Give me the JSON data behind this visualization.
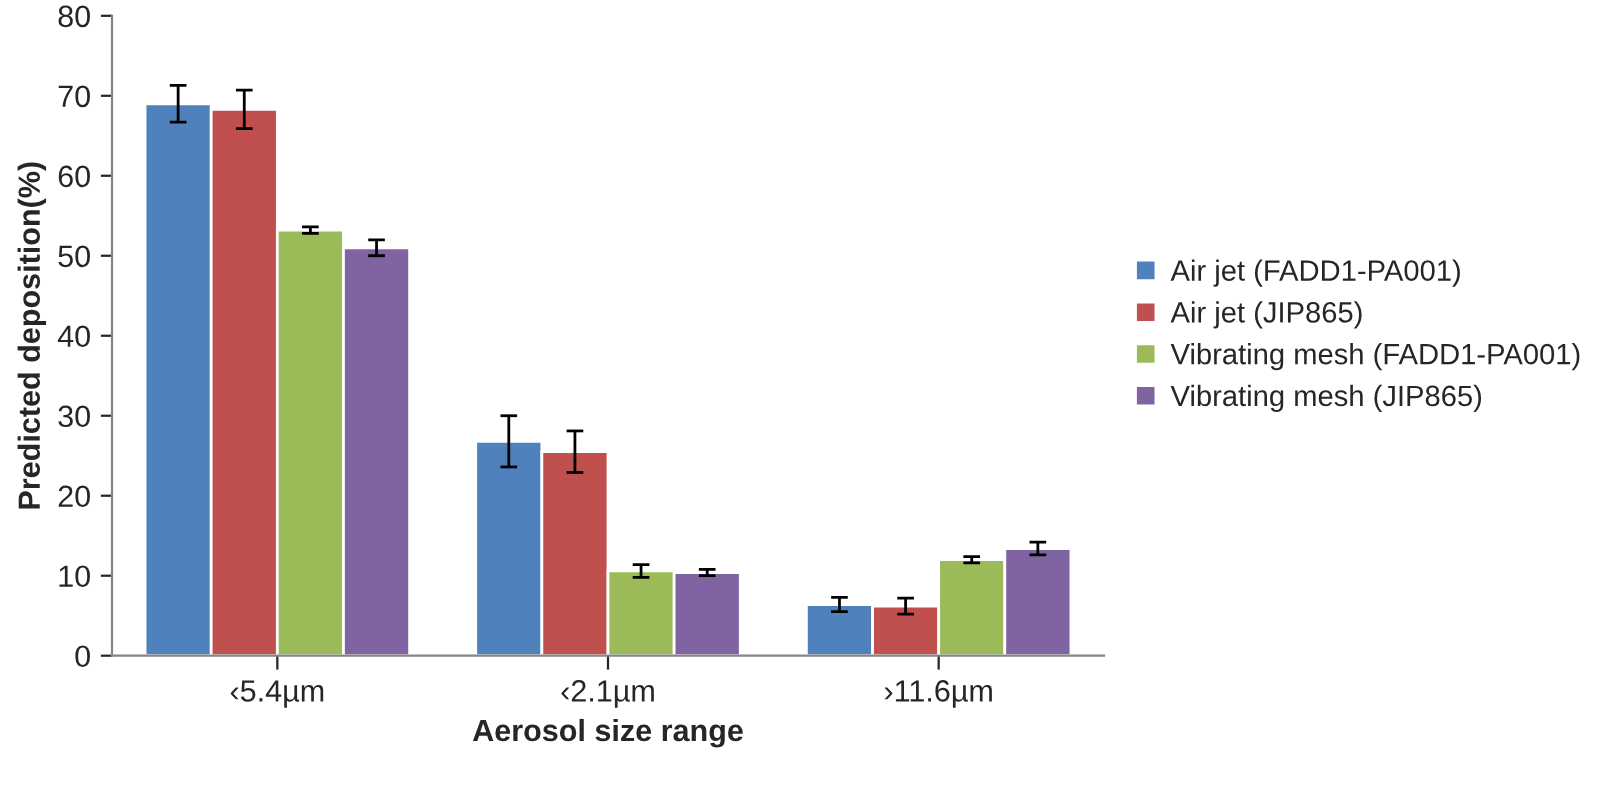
{
  "chart_data": {
    "type": "bar",
    "xlabel": "Aerosol size range",
    "ylabel": "Predicted deposition(%)",
    "categories": [
      "‹5.4µm",
      "‹2.1µm",
      "›11.6µm"
    ],
    "series": [
      {
        "name": "Air jet (FADD1-PA001)",
        "color": "#4f81bd",
        "values": [
          69,
          26.8,
          6.4
        ],
        "errors": [
          2.3,
          3.2,
          0.9
        ]
      },
      {
        "name": "Air jet (JIP865)",
        "color": "#c0504d",
        "values": [
          68.3,
          25.5,
          6.2
        ],
        "errors": [
          2.4,
          2.6,
          1.0
        ]
      },
      {
        "name": "Vibrating mesh (FADD1-PA001)",
        "color": "#9bbb59",
        "values": [
          53.2,
          10.6,
          12
        ],
        "errors": [
          0.4,
          0.8,
          0.4
        ]
      },
      {
        "name": "Vibrating mesh (JIP865)",
        "color": "#8064a2",
        "values": [
          51,
          10.4,
          13.4
        ],
        "errors": [
          1,
          0.4,
          0.8
        ]
      }
    ],
    "ylim": [
      0,
      80
    ],
    "yticks": [
      0,
      10,
      20,
      30,
      40,
      50,
      60,
      70,
      80
    ],
    "grid": false,
    "legend": "right"
  }
}
